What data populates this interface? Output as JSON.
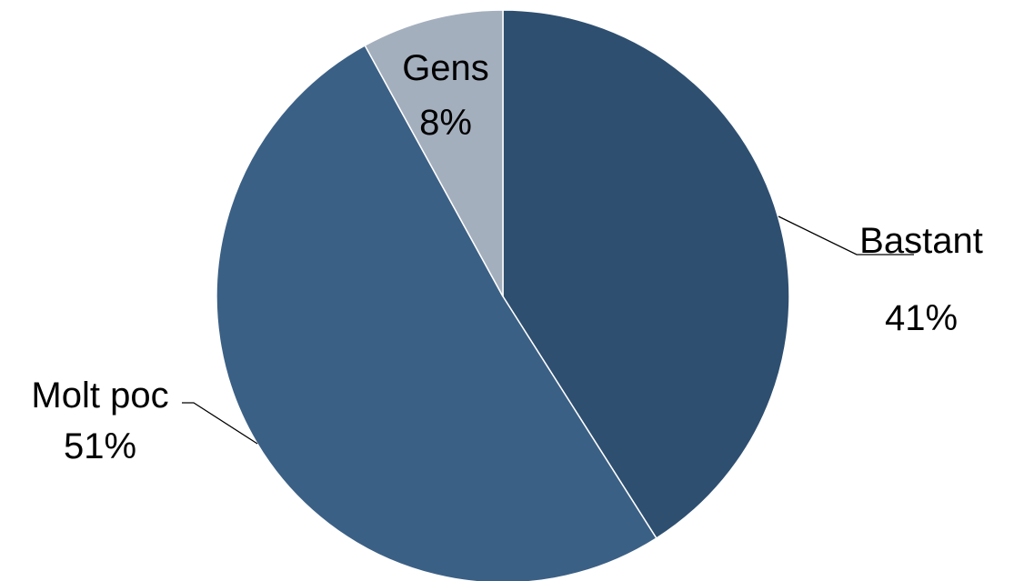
{
  "chart_data": {
    "type": "pie",
    "title": "",
    "start_angle_deg": 0,
    "direction": "clockwise",
    "slices": [
      {
        "label": "Bastant",
        "value": 41,
        "percent_label": "41%",
        "color": "#2e4f70"
      },
      {
        "label": "Molt poc",
        "value": 51,
        "percent_label": "51%",
        "color": "#3b6085"
      },
      {
        "label": "Gens",
        "value": 8,
        "percent_label": "8%",
        "color": "#a4afbe"
      }
    ],
    "legend": "none",
    "data_labels": "category-and-percent"
  }
}
